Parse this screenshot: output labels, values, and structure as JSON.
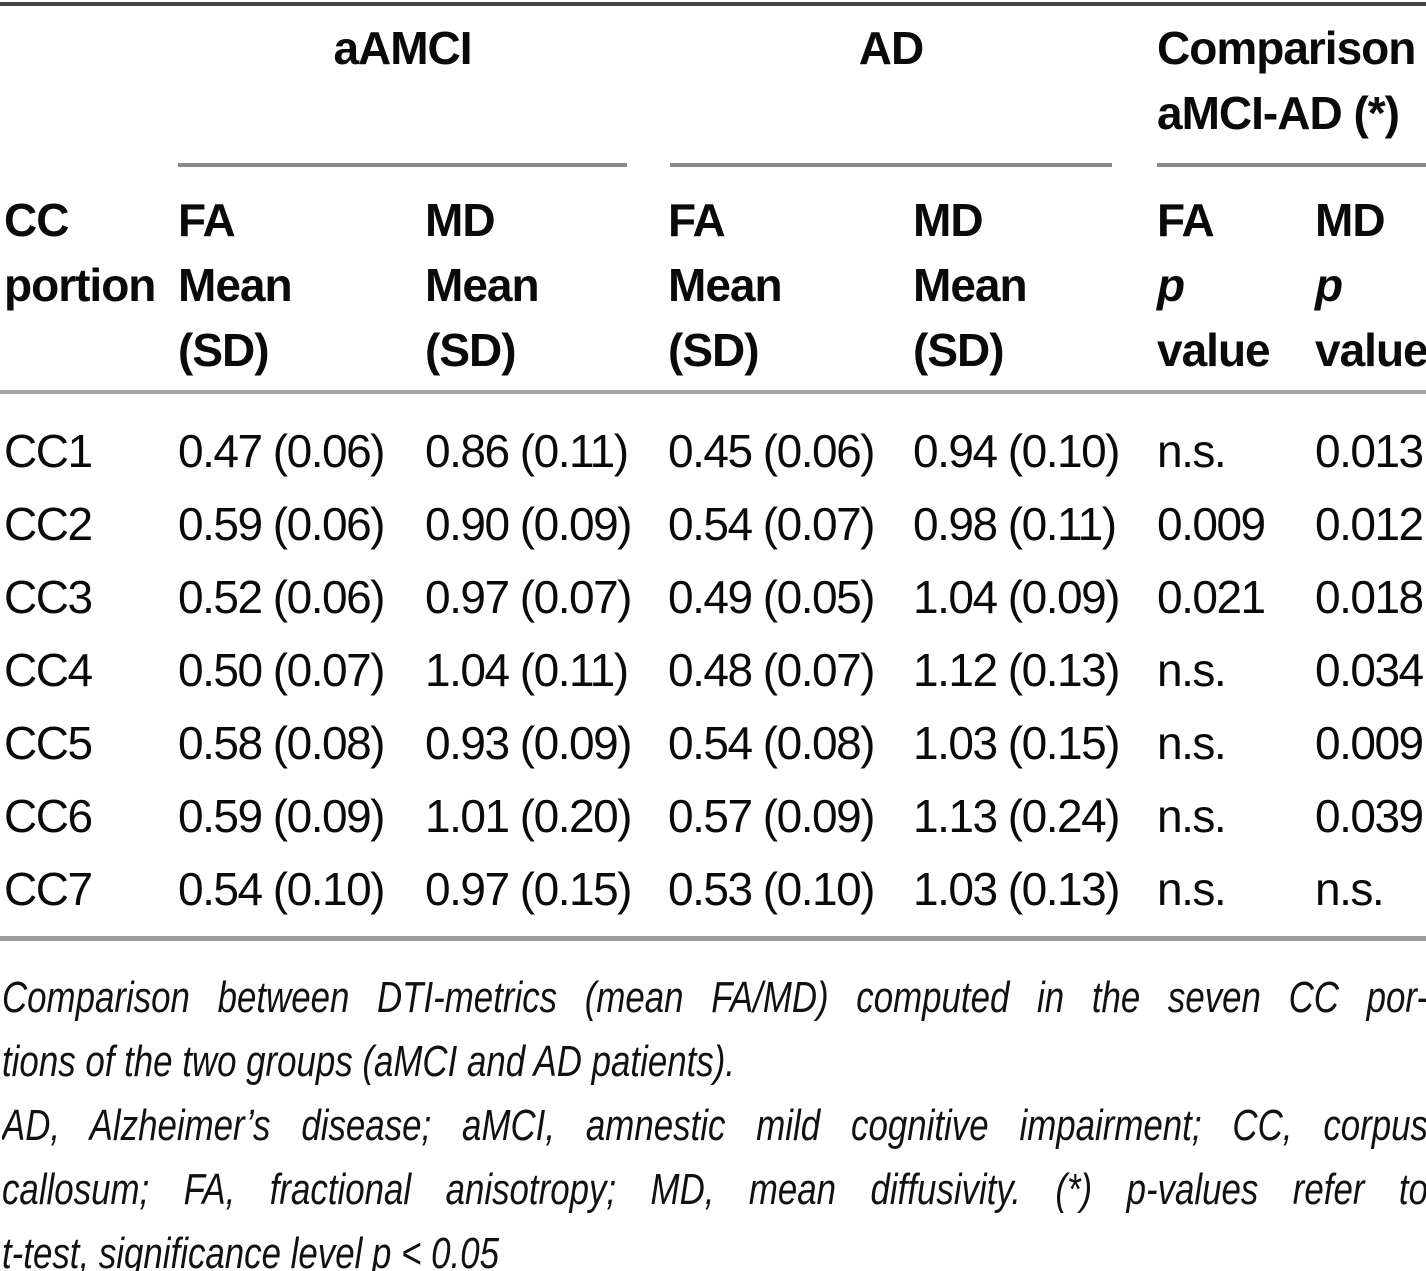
{
  "table": {
    "group_headers": {
      "group1": "aAMCI",
      "group2": "AD",
      "group3_line1": "Comparison",
      "group3_line2": "aMCI-AD (*)"
    },
    "columns": [
      {
        "lines": [
          "CC",
          "portion"
        ]
      },
      {
        "lines": [
          "FA",
          "Mean",
          "(SD)"
        ]
      },
      {
        "lines": [
          "MD",
          "Mean",
          "(SD)"
        ]
      },
      {
        "lines": [
          "FA",
          "Mean",
          "(SD)"
        ]
      },
      {
        "lines": [
          "MD",
          "Mean",
          "(SD)"
        ]
      },
      {
        "lines": [
          "FA",
          "p",
          "value"
        ]
      },
      {
        "lines": [
          "MD",
          "p",
          "value"
        ]
      }
    ],
    "rows": [
      {
        "cells": [
          "CC1",
          "0.47 (0.06)",
          "0.86 (0.11)",
          "0.45 (0.06)",
          "0.94 (0.10)",
          "n.s.",
          "0.013"
        ]
      },
      {
        "cells": [
          "CC2",
          "0.59 (0.06)",
          "0.90 (0.09)",
          "0.54 (0.07)",
          "0.98 (0.11)",
          "0.009",
          "0.012"
        ]
      },
      {
        "cells": [
          "CC3",
          "0.52 (0.06)",
          "0.97 (0.07)",
          "0.49 (0.05)",
          "1.04 (0.09)",
          "0.021",
          "0.018"
        ]
      },
      {
        "cells": [
          "CC4",
          "0.50 (0.07)",
          "1.04 (0.11)",
          "0.48 (0.07)",
          "1.12 (0.13)",
          "n.s.",
          "0.034"
        ]
      },
      {
        "cells": [
          "CC5",
          "0.58 (0.08)",
          "0.93 (0.09)",
          "0.54 (0.08)",
          "1.03 (0.15)",
          "n.s.",
          "0.009"
        ]
      },
      {
        "cells": [
          "CC6",
          "0.59 (0.09)",
          "1.01 (0.20)",
          "0.57 (0.09)",
          "1.13 (0.24)",
          "n.s.",
          "0.039"
        ]
      },
      {
        "cells": [
          "CC7",
          "0.54 (0.10)",
          "0.97 (0.15)",
          "0.53 (0.10)",
          "1.03 (0.13)",
          "n.s.",
          "n.s."
        ]
      }
    ]
  },
  "footnotes": {
    "lines": [
      "Comparison between DTI-metrics (mean FA/MD) computed in the seven CC por-",
      "tions of the two groups (aMCI and AD patients).",
      "AD, Alzheimer’s disease; aMCI, amnestic mild cognitive impairment; CC, corpus",
      "callosum; FA, fractional anisotropy; MD, mean diffusivity. (*) p-values refer to",
      "t-test, significance level p < 0.05"
    ]
  },
  "colors": {
    "text": "#0a0a0a",
    "rule_top": "#454545",
    "rule_group": "#8a8a8a",
    "rule_header_bottom": "#a6a6a6",
    "rule_table_bottom": "#9c9c9c",
    "background": "#ffffff"
  }
}
